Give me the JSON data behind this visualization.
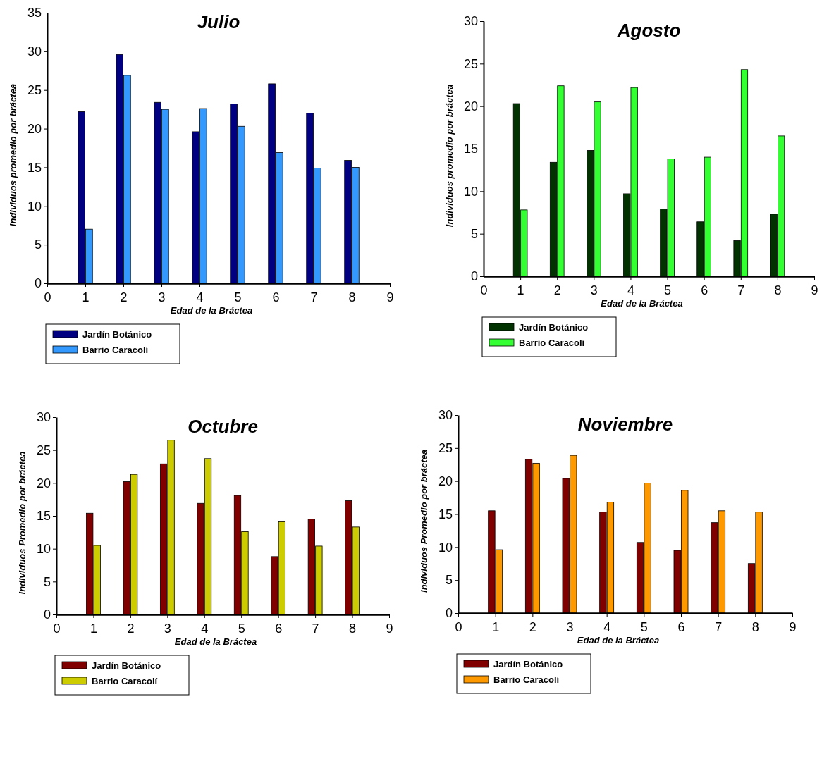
{
  "chart_data": [
    {
      "type": "bar",
      "title": "Julio",
      "xlabel": "Edad de la Bráctea",
      "ylabel": "Individuos promedio por bráctea",
      "x": [
        1,
        2,
        3,
        4,
        5,
        6,
        7,
        8
      ],
      "xlim": [
        0,
        9
      ],
      "xticks": [
        0,
        1,
        2,
        3,
        4,
        5,
        6,
        7,
        8,
        9
      ],
      "ylim": [
        0,
        35
      ],
      "yticks": [
        0,
        5,
        10,
        15,
        20,
        25,
        30,
        35
      ],
      "legend": "bottom left",
      "grid": false,
      "series": [
        {
          "name": "Jardín Botánico",
          "color": "#000080",
          "values": [
            22.2,
            29.6,
            23.4,
            19.6,
            23.2,
            25.8,
            22.0,
            15.9
          ]
        },
        {
          "name": "Barrio Caracolí",
          "color": "#3399ff",
          "values": [
            7.0,
            26.9,
            22.5,
            22.6,
            20.3,
            16.9,
            14.9,
            15.0
          ]
        }
      ]
    },
    {
      "type": "bar",
      "title": "Agosto",
      "xlabel": "Edad de la Bráctea",
      "ylabel": "Individuos promedio por bráctea",
      "x": [
        1,
        2,
        3,
        4,
        5,
        6,
        7,
        8
      ],
      "xlim": [
        0,
        9
      ],
      "xticks": [
        0,
        1,
        2,
        3,
        4,
        5,
        6,
        7,
        8,
        9
      ],
      "ylim": [
        0,
        30
      ],
      "yticks": [
        0,
        5,
        10,
        15,
        20,
        25,
        30
      ],
      "legend": "bottom left",
      "grid": false,
      "series": [
        {
          "name": "Jardín Botánico",
          "color": "#003300",
          "values": [
            20.3,
            13.4,
            14.8,
            9.7,
            7.9,
            6.4,
            4.2,
            7.3
          ]
        },
        {
          "name": "Barrio Caracolí",
          "color": "#33ff33",
          "values": [
            7.8,
            22.4,
            20.5,
            22.2,
            13.8,
            14.0,
            24.3,
            16.5
          ]
        }
      ]
    },
    {
      "type": "bar",
      "title": "Octubre",
      "xlabel": "Edad de la Bráctea",
      "ylabel": "Individuos Promedio por bráctea",
      "x": [
        1,
        2,
        3,
        4,
        5,
        6,
        7,
        8
      ],
      "xlim": [
        0,
        9
      ],
      "xticks": [
        0,
        1,
        2,
        3,
        4,
        5,
        6,
        7,
        8,
        9
      ],
      "ylim": [
        0,
        30
      ],
      "yticks": [
        0,
        5,
        10,
        15,
        20,
        25,
        30
      ],
      "legend": "bottom left",
      "grid": false,
      "series": [
        {
          "name": "Jardín Botánico",
          "color": "#800000",
          "values": [
            15.4,
            20.2,
            22.9,
            16.9,
            18.1,
            8.8,
            14.5,
            17.3
          ]
        },
        {
          "name": "Barrio Caracolí",
          "color": "#cccc00",
          "values": [
            10.5,
            21.3,
            26.5,
            23.7,
            12.6,
            14.1,
            10.4,
            13.3
          ]
        }
      ]
    },
    {
      "type": "bar",
      "title": "Noviembre",
      "xlabel": "Edad de la Bráctea",
      "ylabel": "Individuos Promedio por bráctea",
      "x": [
        1,
        2,
        3,
        4,
        5,
        6,
        7,
        8
      ],
      "xlim": [
        0,
        9
      ],
      "xticks": [
        0,
        1,
        2,
        3,
        4,
        5,
        6,
        7,
        8,
        9
      ],
      "ylim": [
        0,
        30
      ],
      "yticks": [
        0,
        5,
        10,
        15,
        20,
        25,
        30
      ],
      "legend": "bottom left",
      "grid": false,
      "series": [
        {
          "name": "Jardín Botánico",
          "color": "#800000",
          "values": [
            15.5,
            23.3,
            20.4,
            15.3,
            10.7,
            9.5,
            13.7,
            7.5
          ]
        },
        {
          "name": "Barrio Caracolí",
          "color": "#ff9900",
          "values": [
            9.6,
            22.7,
            23.9,
            16.8,
            19.7,
            18.6,
            15.5,
            15.3
          ]
        }
      ]
    }
  ]
}
